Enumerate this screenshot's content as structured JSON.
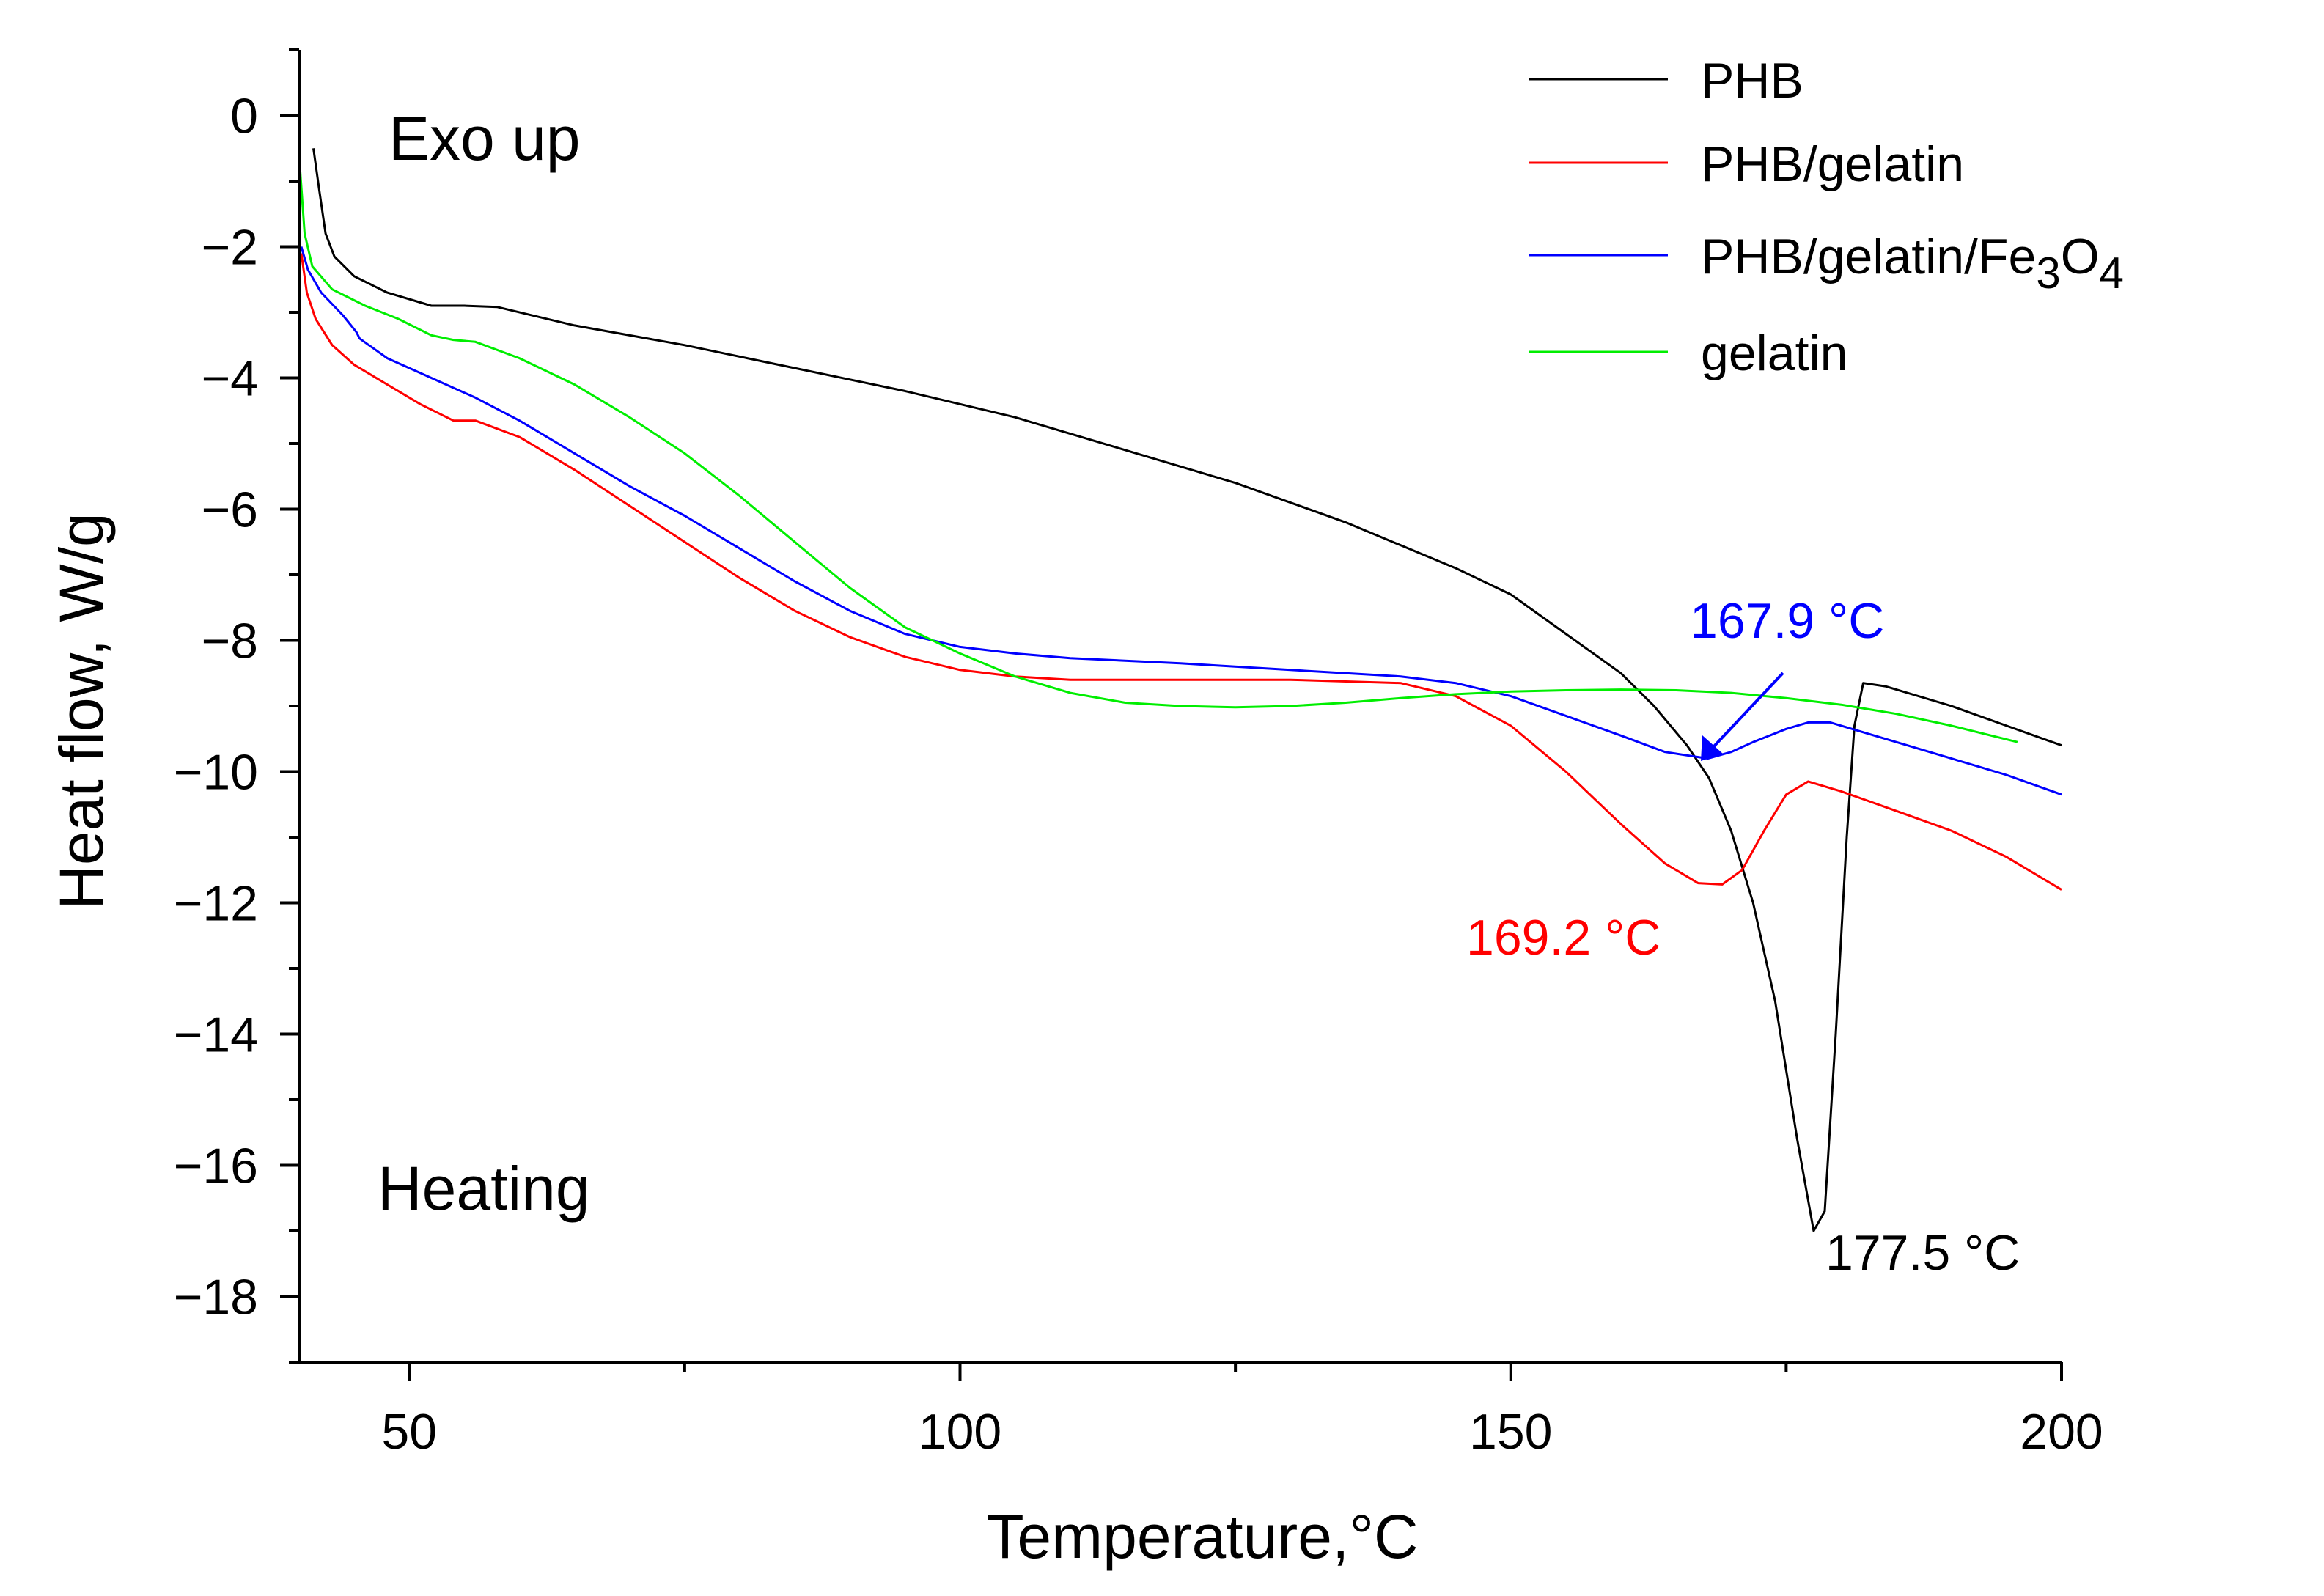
{
  "chart_data": {
    "type": "line",
    "title": "",
    "xlabel": "Temperature,°C",
    "ylabel": "Heat flow, W/g",
    "xlim": [
      40,
      200
    ],
    "ylim": [
      -19,
      1
    ],
    "x_ticks": [
      50,
      100,
      150,
      200
    ],
    "y_ticks": [
      0,
      -2,
      -4,
      -6,
      -8,
      -10,
      -12,
      -14,
      -16,
      -18
    ],
    "x_tick_labels": [
      "50",
      "100",
      "150",
      "200"
    ],
    "y_tick_labels": [
      "0",
      "−2",
      "−4",
      "−6",
      "−8",
      "−10",
      "−12",
      "−14",
      "−16",
      "−18"
    ],
    "grid": false,
    "legend_position": "top-right",
    "annotations": {
      "exo": "Exo up",
      "heating": "Heating"
    },
    "peak_labels": [
      {
        "series": "PHB",
        "text": "177.5 °C",
        "x": 177.5,
        "y": -17.0,
        "color": "#000000"
      },
      {
        "series": "PHB/gelatin",
        "text": "169.2 °C",
        "x": 169.2,
        "y": -11.7,
        "color": "#ff0000"
      },
      {
        "series": "PHB/gelatin/Fe3O4",
        "text": "167.9 °C",
        "x": 167.9,
        "y": -9.8,
        "color": "#0000ff"
      }
    ],
    "series": [
      {
        "name": "PHB",
        "legend_label": "PHB",
        "color": "#000000",
        "points": [
          [
            41.3,
            -0.5
          ],
          [
            41.8,
            -1.1
          ],
          [
            42.4,
            -1.8
          ],
          [
            43.2,
            -2.15
          ],
          [
            45,
            -2.45
          ],
          [
            48,
            -2.7
          ],
          [
            52,
            -2.9
          ],
          [
            55,
            -2.9
          ],
          [
            58,
            -2.92
          ],
          [
            65,
            -3.2
          ],
          [
            75,
            -3.5
          ],
          [
            85,
            -3.85
          ],
          [
            95,
            -4.2
          ],
          [
            105,
            -4.6
          ],
          [
            115,
            -5.1
          ],
          [
            125,
            -5.6
          ],
          [
            135,
            -6.2
          ],
          [
            145,
            -6.9
          ],
          [
            150,
            -7.3
          ],
          [
            155,
            -7.9
          ],
          [
            160,
            -8.5
          ],
          [
            163,
            -9.0
          ],
          [
            166,
            -9.6
          ],
          [
            168,
            -10.1
          ],
          [
            170,
            -10.9
          ],
          [
            172,
            -12.0
          ],
          [
            174,
            -13.5
          ],
          [
            176,
            -15.6
          ],
          [
            177.5,
            -17.0
          ],
          [
            178.5,
            -16.7
          ],
          [
            179.5,
            -14.0
          ],
          [
            180.5,
            -11.0
          ],
          [
            181.2,
            -9.3
          ],
          [
            182,
            -8.65
          ],
          [
            184,
            -8.7
          ],
          [
            190,
            -9.0
          ],
          [
            195,
            -9.3
          ],
          [
            200,
            -9.6
          ]
        ]
      },
      {
        "name": "PHB/gelatin",
        "legend_label": "PHB/gelatin",
        "color": "#ff0000",
        "points": [
          [
            40.2,
            -2.1
          ],
          [
            40.7,
            -2.7
          ],
          [
            41.5,
            -3.1
          ],
          [
            43,
            -3.5
          ],
          [
            45,
            -3.8
          ],
          [
            48,
            -4.1
          ],
          [
            51,
            -4.4
          ],
          [
            54,
            -4.65
          ],
          [
            56,
            -4.65
          ],
          [
            60,
            -4.9
          ],
          [
            65,
            -5.4
          ],
          [
            70,
            -5.95
          ],
          [
            75,
            -6.5
          ],
          [
            80,
            -7.05
          ],
          [
            85,
            -7.55
          ],
          [
            90,
            -7.95
          ],
          [
            95,
            -8.25
          ],
          [
            100,
            -8.45
          ],
          [
            105,
            -8.55
          ],
          [
            110,
            -8.6
          ],
          [
            120,
            -8.6
          ],
          [
            130,
            -8.6
          ],
          [
            140,
            -8.65
          ],
          [
            145,
            -8.85
          ],
          [
            150,
            -9.3
          ],
          [
            155,
            -10.0
          ],
          [
            160,
            -10.8
          ],
          [
            164,
            -11.4
          ],
          [
            167,
            -11.7
          ],
          [
            169.2,
            -11.72
          ],
          [
            171,
            -11.5
          ],
          [
            173,
            -10.9
          ],
          [
            175,
            -10.35
          ],
          [
            177,
            -10.15
          ],
          [
            180,
            -10.3
          ],
          [
            185,
            -10.6
          ],
          [
            190,
            -10.9
          ],
          [
            195,
            -11.3
          ],
          [
            200,
            -11.8
          ]
        ]
      },
      {
        "name": "PHB/gelatin/Fe3O4",
        "legend_label": "PHB/gelatin/Fe",
        "legend_sub1": "3",
        "legend_mid": "O",
        "legend_sub2": "4",
        "color": "#0000ff",
        "points": [
          [
            40.2,
            -2.0
          ],
          [
            40.8,
            -2.35
          ],
          [
            42,
            -2.7
          ],
          [
            44,
            -3.05
          ],
          [
            45.2,
            -3.3
          ],
          [
            45.5,
            -3.4
          ],
          [
            48,
            -3.7
          ],
          [
            52,
            -4.0
          ],
          [
            56,
            -4.3
          ],
          [
            60,
            -4.65
          ],
          [
            65,
            -5.15
          ],
          [
            70,
            -5.65
          ],
          [
            75,
            -6.1
          ],
          [
            80,
            -6.6
          ],
          [
            85,
            -7.1
          ],
          [
            90,
            -7.55
          ],
          [
            95,
            -7.9
          ],
          [
            100,
            -8.1
          ],
          [
            105,
            -8.2
          ],
          [
            110,
            -8.27
          ],
          [
            120,
            -8.35
          ],
          [
            130,
            -8.45
          ],
          [
            140,
            -8.55
          ],
          [
            145,
            -8.65
          ],
          [
            150,
            -8.85
          ],
          [
            155,
            -9.15
          ],
          [
            160,
            -9.45
          ],
          [
            164,
            -9.7
          ],
          [
            167.9,
            -9.8
          ],
          [
            170,
            -9.7
          ],
          [
            172,
            -9.55
          ],
          [
            175,
            -9.35
          ],
          [
            177,
            -9.25
          ],
          [
            179,
            -9.25
          ],
          [
            182,
            -9.4
          ],
          [
            186,
            -9.6
          ],
          [
            190,
            -9.8
          ],
          [
            195,
            -10.05
          ],
          [
            200,
            -10.35
          ]
        ]
      },
      {
        "name": "gelatin",
        "legend_label": "gelatin",
        "color": "#00ee00",
        "points": [
          [
            40.1,
            -0.85
          ],
          [
            40.5,
            -1.8
          ],
          [
            41.2,
            -2.3
          ],
          [
            43,
            -2.65
          ],
          [
            46,
            -2.9
          ],
          [
            49,
            -3.1
          ],
          [
            52,
            -3.35
          ],
          [
            54,
            -3.42
          ],
          [
            56,
            -3.45
          ],
          [
            60,
            -3.7
          ],
          [
            65,
            -4.1
          ],
          [
            70,
            -4.6
          ],
          [
            75,
            -5.15
          ],
          [
            80,
            -5.8
          ],
          [
            85,
            -6.5
          ],
          [
            90,
            -7.2
          ],
          [
            95,
            -7.8
          ],
          [
            100,
            -8.2
          ],
          [
            105,
            -8.55
          ],
          [
            110,
            -8.8
          ],
          [
            115,
            -8.95
          ],
          [
            120,
            -9.0
          ],
          [
            125,
            -9.02
          ],
          [
            130,
            -9.0
          ],
          [
            135,
            -8.95
          ],
          [
            140,
            -8.88
          ],
          [
            145,
            -8.82
          ],
          [
            150,
            -8.78
          ],
          [
            155,
            -8.76
          ],
          [
            160,
            -8.75
          ],
          [
            165,
            -8.76
          ],
          [
            170,
            -8.8
          ],
          [
            175,
            -8.88
          ],
          [
            180,
            -8.98
          ],
          [
            185,
            -9.12
          ],
          [
            190,
            -9.3
          ],
          [
            196,
            -9.55
          ]
        ]
      }
    ]
  }
}
